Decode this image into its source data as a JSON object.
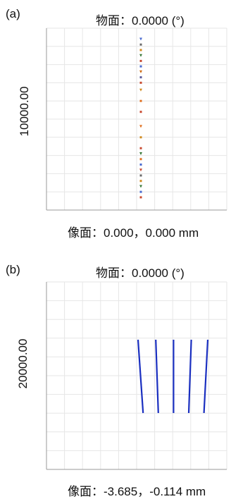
{
  "chart_data": [
    {
      "type": "scatter",
      "panel_label": "(a)",
      "title": "物面：0.0000 (°)",
      "footer": "像面：0.000，0.000 mm",
      "ylabel": "10000.00",
      "grid": true,
      "points": [
        {
          "x": 0,
          "y": 0.94,
          "c": "#4a6bd0"
        },
        {
          "x": 0,
          "y": 0.91,
          "c": "#6a6a6a"
        },
        {
          "x": 0,
          "y": 0.88,
          "c": "#d08a20"
        },
        {
          "x": 0,
          "y": 0.85,
          "c": "#3a7a3a"
        },
        {
          "x": 0,
          "y": 0.82,
          "c": "#c84a30"
        },
        {
          "x": 0,
          "y": 0.79,
          "c": "#4a6bd0"
        },
        {
          "x": 0,
          "y": 0.76,
          "c": "#d06a10"
        },
        {
          "x": 0,
          "y": 0.73,
          "c": "#5a5a9a"
        },
        {
          "x": 0,
          "y": 0.7,
          "c": "#c84a30"
        },
        {
          "x": 0,
          "y": 0.66,
          "c": "#d08a20"
        },
        {
          "x": 0,
          "y": 0.6,
          "c": "#e07020"
        },
        {
          "x": 0,
          "y": 0.54,
          "c": "#c84a30"
        },
        {
          "x": 0,
          "y": 0.46,
          "c": "#e07020"
        },
        {
          "x": 0,
          "y": 0.4,
          "c": "#d08a20"
        },
        {
          "x": 0,
          "y": 0.34,
          "c": "#c84a30"
        },
        {
          "x": 0,
          "y": 0.31,
          "c": "#3a7a3a"
        },
        {
          "x": 0,
          "y": 0.28,
          "c": "#e07020"
        },
        {
          "x": 0,
          "y": 0.25,
          "c": "#4a6bd0"
        },
        {
          "x": 0,
          "y": 0.22,
          "c": "#c84a30"
        },
        {
          "x": 0,
          "y": 0.19,
          "c": "#6a6a6a"
        },
        {
          "x": 0,
          "y": 0.16,
          "c": "#d08a20"
        },
        {
          "x": 0,
          "y": 0.13,
          "c": "#3a7a3a"
        },
        {
          "x": 0,
          "y": 0.1,
          "c": "#4a6bd0"
        },
        {
          "x": 0,
          "y": 0.07,
          "c": "#c84a30"
        }
      ]
    },
    {
      "type": "line",
      "panel_label": "(b)",
      "title": "物面：0.0000 (°)",
      "footer": "像面：-3.685，-0.114 mm",
      "ylabel": "20000.00",
      "grid": true,
      "color": "#1a2fc0",
      "series": [
        {
          "values": [
            [
              0.0,
              0.0
            ],
            [
              0.04,
              1.0
            ]
          ]
        },
        {
          "values": [
            [
              0.14,
              0.0
            ],
            [
              0.16,
              1.0
            ]
          ]
        },
        {
          "values": [
            [
              0.28,
              0.0
            ],
            [
              0.28,
              1.0
            ]
          ]
        },
        {
          "values": [
            [
              0.42,
              0.0
            ],
            [
              0.4,
              1.0
            ]
          ]
        },
        {
          "values": [
            [
              0.55,
              0.0
            ],
            [
              0.52,
              1.0
            ]
          ]
        }
      ]
    }
  ]
}
